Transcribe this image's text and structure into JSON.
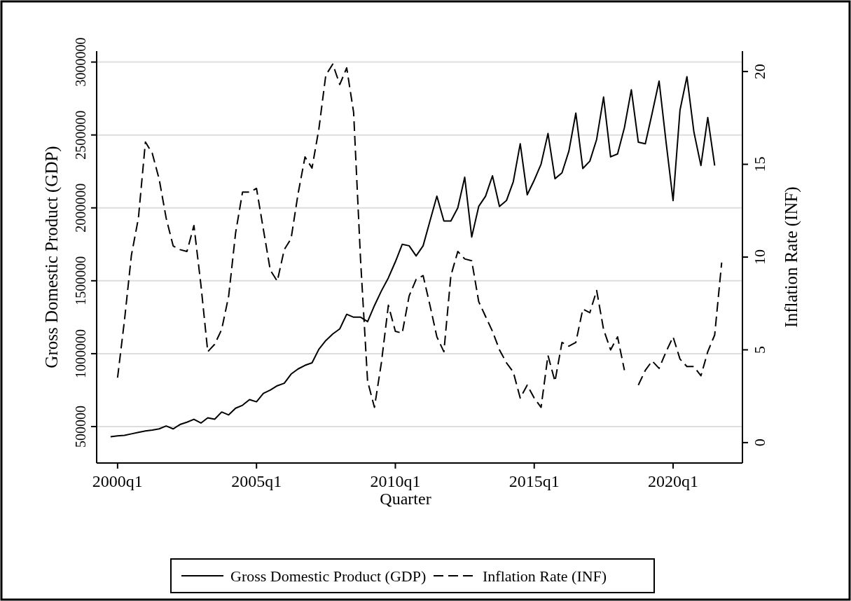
{
  "chart_data": {
    "type": "line",
    "xlabel": "Quarter",
    "ylabel": "Gross Domestic Product (GDP)",
    "y2label": "Inflation Rate (INF)",
    "x": [
      "1999-10",
      "2000-01",
      "2000-04",
      "2000-07",
      "2000-10",
      "2001-01",
      "2001-04",
      "2001-07",
      "2001-10",
      "2002-01",
      "2002-04",
      "2002-07",
      "2002-10",
      "2003-01",
      "2003-04",
      "2003-07",
      "2003-10",
      "2004-01",
      "2004-04",
      "2004-07",
      "2004-10",
      "2005-01",
      "2005-04",
      "2005-07",
      "2005-10",
      "2006-01",
      "2006-04",
      "2006-07",
      "2006-10",
      "2007-01",
      "2007-04",
      "2007-07",
      "2007-10",
      "2008-01",
      "2008-04",
      "2008-07",
      "2008-10",
      "2009-01",
      "2009-04",
      "2009-07",
      "2009-10",
      "2010-01",
      "2010-04",
      "2010-07",
      "2010-10",
      "2011-01",
      "2011-04",
      "2011-07",
      "2011-10",
      "2012-01",
      "2012-04",
      "2012-07",
      "2012-10",
      "2013-01",
      "2013-04",
      "2013-07",
      "2013-10",
      "2014-01",
      "2014-04",
      "2014-07",
      "2014-10",
      "2015-01",
      "2015-04",
      "2015-07",
      "2015-10",
      "2016-01",
      "2016-04",
      "2016-07",
      "2016-10",
      "2017-01",
      "2017-04",
      "2017-07",
      "2017-10",
      "2018-01",
      "2018-04",
      "2018-07",
      "2018-10",
      "2019-01",
      "2019-04",
      "2019-07",
      "2019-10",
      "2020-01",
      "2020-04",
      "2020-07",
      "2020-10",
      "2021-01",
      "2021-04",
      "2021-07",
      "2021-10"
    ],
    "series": [
      {
        "name": "Gross Domestic Product (GDP)",
        "color": "#000000",
        "line_style": "solid",
        "values": [
          430000,
          436000,
          440000,
          450000,
          460000,
          470000,
          476000,
          484000,
          504000,
          484000,
          514000,
          530000,
          550000,
          524000,
          560000,
          550000,
          600000,
          580000,
          626000,
          646000,
          685000,
          670000,
          727000,
          750000,
          780000,
          797000,
          860000,
          895000,
          920000,
          937000,
          1030000,
          1090000,
          1135000,
          1170000,
          1270000,
          1250000,
          1250000,
          1220000,
          1330000,
          1430000,
          1520000,
          1630000,
          1750000,
          1740000,
          1670000,
          1740000,
          1910000,
          2080000,
          1910000,
          1910000,
          2000000,
          2210000,
          1800000,
          2010000,
          2080000,
          2220000,
          2010000,
          2050000,
          2180000,
          2440000,
          2090000,
          2190000,
          2300000,
          2510000,
          2200000,
          2240000,
          2390000,
          2650000,
          2270000,
          2320000,
          2470000,
          2760000,
          2350000,
          2370000,
          2550000,
          2810000,
          2450000,
          2440000,
          2650000,
          2870000,
          2450000,
          2050000,
          2670000,
          2900000,
          2520000,
          2290000,
          2620000,
          2290000,
          null
        ]
      },
      {
        "name": "Inflation Rate (INF)",
        "color": "#000000",
        "line_style": "dashed",
        "axis": "y2",
        "values": [
          null,
          3.5,
          6.6,
          10.1,
          12.1,
          16.2,
          15.6,
          14.2,
          12.1,
          10.6,
          10.4,
          10.3,
          11.7,
          8.5,
          4.9,
          5.3,
          6.1,
          7.9,
          11.3,
          13.5,
          13.5,
          13.7,
          11.5,
          9.3,
          8.7,
          10.4,
          11.0,
          13.4,
          15.4,
          14.8,
          16.9,
          19.8,
          20.4,
          19.3,
          20.2,
          17.8,
          9.8,
          3.3,
          1.9,
          4.3,
          7.4,
          6.0,
          5.9,
          7.9,
          8.8,
          9.0,
          7.4,
          5.7,
          4.9,
          9.0,
          10.3,
          9.9,
          9.8,
          7.6,
          6.8,
          6.0,
          5.0,
          4.3,
          3.8,
          2.4,
          3.1,
          2.4,
          1.9,
          4.7,
          3.3,
          5.4,
          5.2,
          5.4,
          7.2,
          7.0,
          8.2,
          6.1,
          5.0,
          5.7,
          3.9,
          null,
          3.1,
          3.9,
          4.4,
          4.0,
          4.9,
          5.7,
          4.5,
          4.1,
          4.1,
          3.6,
          4.9,
          5.8,
          9.7
        ]
      }
    ],
    "xlim": [
      "1999-04",
      "2022-07"
    ],
    "xticks": [
      {
        "value": "2000-01",
        "label": "2000q1"
      },
      {
        "value": "2005-01",
        "label": "2005q1"
      },
      {
        "value": "2010-01",
        "label": "2010q1"
      },
      {
        "value": "2015-01",
        "label": "2015q1"
      },
      {
        "value": "2020-01",
        "label": "2020q1"
      }
    ],
    "ylim": [
      250000,
      3075000
    ],
    "yticks": [
      500000,
      1000000,
      1500000,
      2000000,
      2500000,
      3000000
    ],
    "y2lim": [
      -1.1,
      21.1
    ],
    "y2ticks": [
      0,
      5,
      10,
      15,
      20
    ],
    "grid": "y",
    "legend": "bottom"
  }
}
